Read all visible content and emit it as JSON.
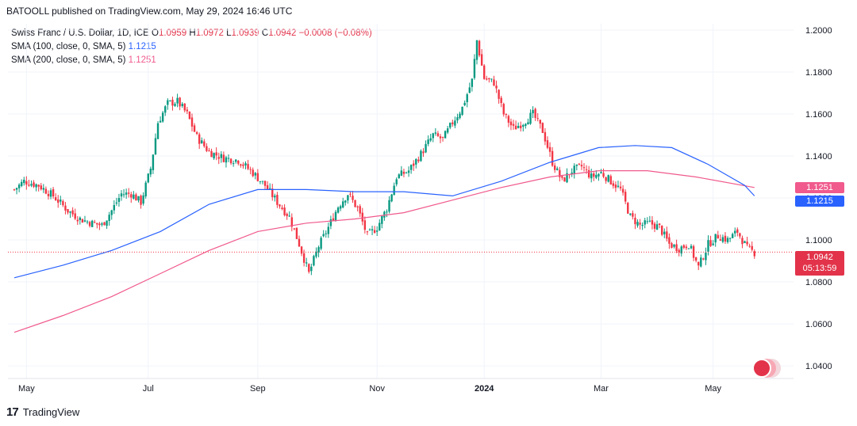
{
  "attribution": "BATOOLL published on TradingView.com, May 29, 2024 16:46 UTC",
  "legend": {
    "symbol": "Swiss Franc / U.S. Dollar, 1D, ICE",
    "o_label": "O",
    "o_value": "1.0959",
    "h_label": "H",
    "h_value": "1.0972",
    "l_label": "L",
    "l_value": "1.0939",
    "c_label": "C",
    "c_value": "1.0942",
    "change": "−0.0008 (−0.08%)",
    "sma100_label": "SMA (100, close, 0, SMA, 5)",
    "sma100_value": "1.1215",
    "sma200_label": "SMA (200, close, 0, SMA, 5)",
    "sma200_value": "1.1251"
  },
  "badges": {
    "price": "1.0942",
    "countdown": "05:13:59",
    "sma200": "1.1251",
    "sma100": "1.1215"
  },
  "footer": {
    "brand": "TradingView"
  },
  "colors": {
    "up": "#089981",
    "down": "#f23645",
    "sma100": "#2962ff",
    "sma200": "#f05a8c",
    "grid": "#f0f3fa"
  },
  "chart_data": {
    "type": "candlestick",
    "title": "Swiss Franc / U.S. Dollar, 1D, ICE",
    "x_ticks": [
      "May",
      "Jul",
      "Sep",
      "Nov",
      "2024",
      "Mar",
      "May"
    ],
    "y_ticks": [
      "1.0400",
      "1.0600",
      "1.0800",
      "1.1000",
      "1.1200",
      "1.1400",
      "1.1600",
      "1.1800",
      "1.2000"
    ],
    "ylim": [
      1.034,
      1.203
    ],
    "grid": true,
    "closes": [
      [
        0,
        1.124
      ],
      [
        4,
        1.128
      ],
      [
        10,
        1.126
      ],
      [
        16,
        1.121
      ],
      [
        22,
        1.114
      ],
      [
        27,
        1.11
      ],
      [
        32,
        1.108
      ],
      [
        36,
        1.107
      ],
      [
        40,
        1.114
      ],
      [
        44,
        1.122
      ],
      [
        48,
        1.122
      ],
      [
        52,
        1.118
      ],
      [
        56,
        1.134
      ],
      [
        59,
        1.156
      ],
      [
        63,
        1.165
      ],
      [
        67,
        1.166
      ],
      [
        71,
        1.16
      ],
      [
        75,
        1.149
      ],
      [
        80,
        1.142
      ],
      [
        86,
        1.139
      ],
      [
        92,
        1.138
      ],
      [
        98,
        1.132
      ],
      [
        103,
        1.126
      ],
      [
        108,
        1.118
      ],
      [
        113,
        1.111
      ],
      [
        117,
        1.098
      ],
      [
        121,
        1.084
      ],
      [
        125,
        1.097
      ],
      [
        129,
        1.106
      ],
      [
        133,
        1.116
      ],
      [
        137,
        1.122
      ],
      [
        141,
        1.115
      ],
      [
        145,
        1.102
      ],
      [
        149,
        1.106
      ],
      [
        153,
        1.115
      ],
      [
        157,
        1.13
      ],
      [
        162,
        1.133
      ],
      [
        167,
        1.141
      ],
      [
        172,
        1.15
      ],
      [
        176,
        1.148
      ],
      [
        180,
        1.156
      ],
      [
        184,
        1.163
      ],
      [
        188,
        1.176
      ],
      [
        190,
        1.195
      ],
      [
        193,
        1.177
      ],
      [
        197,
        1.175
      ],
      [
        201,
        1.16
      ],
      [
        205,
        1.153
      ],
      [
        209,
        1.156
      ],
      [
        213,
        1.16
      ],
      [
        217,
        1.152
      ],
      [
        221,
        1.137
      ],
      [
        225,
        1.128
      ],
      [
        229,
        1.133
      ],
      [
        233,
        1.135
      ],
      [
        237,
        1.13
      ],
      [
        241,
        1.132
      ],
      [
        245,
        1.128
      ],
      [
        249,
        1.124
      ],
      [
        253,
        1.111
      ],
      [
        257,
        1.107
      ],
      [
        261,
        1.108
      ],
      [
        265,
        1.106
      ],
      [
        269,
        1.098
      ],
      [
        273,
        1.096
      ],
      [
        277,
        1.098
      ],
      [
        281,
        1.087
      ],
      [
        285,
        1.098
      ],
      [
        289,
        1.102
      ],
      [
        293,
        1.1
      ],
      [
        297,
        1.104
      ],
      [
        301,
        1.096
      ],
      [
        304,
        1.094
      ]
    ],
    "sma100": [
      [
        0,
        1.082
      ],
      [
        20,
        1.088
      ],
      [
        40,
        1.095
      ],
      [
        60,
        1.104
      ],
      [
        80,
        1.117
      ],
      [
        100,
        1.124
      ],
      [
        120,
        1.124
      ],
      [
        140,
        1.123
      ],
      [
        160,
        1.123
      ],
      [
        180,
        1.121
      ],
      [
        200,
        1.128
      ],
      [
        220,
        1.137
      ],
      [
        240,
        1.144
      ],
      [
        255,
        1.145
      ],
      [
        270,
        1.144
      ],
      [
        285,
        1.136
      ],
      [
        300,
        1.126
      ],
      [
        304,
        1.121
      ]
    ],
    "sma200": [
      [
        0,
        1.056
      ],
      [
        20,
        1.064
      ],
      [
        40,
        1.073
      ],
      [
        60,
        1.084
      ],
      [
        80,
        1.095
      ],
      [
        100,
        1.104
      ],
      [
        120,
        1.108
      ],
      [
        140,
        1.11
      ],
      [
        160,
        1.113
      ],
      [
        180,
        1.119
      ],
      [
        200,
        1.125
      ],
      [
        220,
        1.13
      ],
      [
        240,
        1.133
      ],
      [
        260,
        1.133
      ],
      [
        280,
        1.13
      ],
      [
        304,
        1.125
      ]
    ],
    "last_price": 1.0942
  }
}
